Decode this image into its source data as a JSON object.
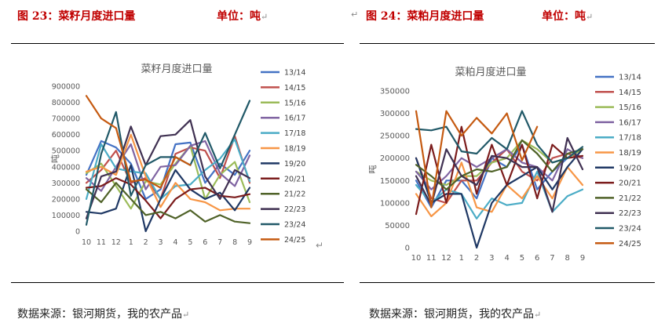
{
  "left": {
    "figure_title": "图 23：菜籽月度进口量",
    "unit": "单位：吨",
    "source": "数据来源：银河期货，我的农产品"
  },
  "right": {
    "figure_title": "图 24：菜粕月度进口量",
    "unit": "单位：吨",
    "source": "数据来源：银河期货，我的农产品"
  },
  "return_mark": "↵",
  "chart_data": [
    {
      "type": "line",
      "title": "菜籽月度进口量",
      "ylabel": "吨",
      "xlabel": "",
      "ylim": [
        0,
        900000
      ],
      "yticks": [
        0,
        100000,
        200000,
        300000,
        400000,
        500000,
        600000,
        700000,
        800000,
        900000
      ],
      "categories": [
        "10",
        "11",
        "12",
        "1",
        "2",
        "3",
        "4",
        "5",
        "6",
        "7",
        "8",
        "9"
      ],
      "legend_position": "right",
      "series": [
        {
          "name": "13/14",
          "color": "#4472c4",
          "values": [
            350000,
            560000,
            520000,
            420000,
            200000,
            260000,
            540000,
            550000,
            300000,
            420000,
            350000,
            500000
          ]
        },
        {
          "name": "14/15",
          "color": "#c0504d",
          "values": [
            300000,
            380000,
            500000,
            300000,
            330000,
            200000,
            480000,
            520000,
            500000,
            330000,
            590000,
            300000
          ]
        },
        {
          "name": "15/16",
          "color": "#9bbb59",
          "values": [
            360000,
            420000,
            280000,
            140000,
            310000,
            290000,
            420000,
            530000,
            200000,
            350000,
            430000,
            180000
          ]
        },
        {
          "name": "16/17",
          "color": "#8064a2",
          "values": [
            330000,
            250000,
            400000,
            540000,
            260000,
            400000,
            410000,
            530000,
            560000,
            360000,
            280000,
            470000
          ]
        },
        {
          "name": "17/18",
          "color": "#4bacc6",
          "values": [
            200000,
            540000,
            390000,
            370000,
            360000,
            200000,
            280000,
            290000,
            380000,
            450000,
            570000,
            310000
          ]
        },
        {
          "name": "18/19",
          "color": "#f79646",
          "values": [
            370000,
            400000,
            350000,
            600000,
            340000,
            150000,
            300000,
            200000,
            180000,
            130000,
            140000,
            140000
          ]
        },
        {
          "name": "19/20",
          "color": "#1f3864",
          "values": [
            120000,
            110000,
            140000,
            410000,
            0,
            200000,
            380000,
            260000,
            200000,
            240000,
            130000,
            270000
          ]
        },
        {
          "name": "20/21",
          "color": "#7b1c1c",
          "values": [
            270000,
            280000,
            330000,
            290000,
            190000,
            80000,
            200000,
            260000,
            270000,
            220000,
            210000,
            230000
          ]
        },
        {
          "name": "21/22",
          "color": "#4f6228",
          "values": [
            260000,
            180000,
            300000,
            200000,
            100000,
            120000,
            80000,
            130000,
            60000,
            100000,
            60000,
            50000
          ]
        },
        {
          "name": "22/23",
          "color": "#403152",
          "values": [
            80000,
            340000,
            370000,
            650000,
            410000,
            590000,
            600000,
            690000,
            340000,
            200000,
            380000,
            330000
          ]
        },
        {
          "name": "23/24",
          "color": "#215968",
          "values": [
            40000,
            480000,
            740000,
            220000,
            410000,
            460000,
            460000,
            410000,
            610000,
            390000,
            600000,
            810000
          ]
        },
        {
          "name": "24/25",
          "color": "#c55a11",
          "values": [
            840000,
            700000,
            640000,
            310000,
            320000,
            270000,
            460000,
            410000,
            null,
            null,
            null,
            null
          ]
        }
      ]
    },
    {
      "type": "line",
      "title": "菜粕月度进口量",
      "ylabel": "吨",
      "xlabel": "",
      "ylim": [
        0,
        350000
      ],
      "yticks": [
        0,
        50000,
        100000,
        150000,
        200000,
        250000,
        300000,
        350000
      ],
      "categories": [
        "10",
        "11",
        "12",
        "1",
        "2",
        "3",
        "4",
        "5",
        "6",
        "7",
        "8",
        "9"
      ],
      "legend_position": "right",
      "series": [
        {
          "name": "13/14",
          "color": "#4472c4",
          "values": [
            150000,
            90000,
            150000,
            150000,
            110000,
            200000,
            180000,
            230000,
            130000,
            170000,
            200000,
            220000
          ]
        },
        {
          "name": "14/15",
          "color": "#c0504d",
          "values": [
            200000,
            110000,
            100000,
            150000,
            150000,
            190000,
            220000,
            170000,
            150000,
            200000,
            210000,
            200000
          ]
        },
        {
          "name": "15/16",
          "color": "#9bbb59",
          "values": [
            170000,
            150000,
            140000,
            160000,
            160000,
            190000,
            200000,
            240000,
            220000,
            190000,
            200000,
            220000
          ]
        },
        {
          "name": "16/17",
          "color": "#8064a2",
          "values": [
            170000,
            130000,
            160000,
            200000,
            180000,
            200000,
            220000,
            190000,
            180000,
            150000,
            220000,
            200000
          ]
        },
        {
          "name": "17/18",
          "color": "#4bacc6",
          "values": [
            140000,
            100000,
            130000,
            120000,
            65000,
            110000,
            95000,
            100000,
            170000,
            80000,
            115000,
            130000
          ]
        },
        {
          "name": "18/19",
          "color": "#f79646",
          "values": [
            120000,
            70000,
            100000,
            190000,
            90000,
            80000,
            140000,
            110000,
            160000,
            110000,
            180000,
            140000
          ]
        },
        {
          "name": "19/20",
          "color": "#1f3864",
          "values": [
            200000,
            100000,
            120000,
            120000,
            0,
            100000,
            140000,
            160000,
            180000,
            130000,
            180000,
            220000
          ]
        },
        {
          "name": "20/21",
          "color": "#7b1c1c",
          "values": [
            75000,
            230000,
            100000,
            270000,
            120000,
            230000,
            140000,
            230000,
            110000,
            230000,
            200000,
            205000
          ]
        },
        {
          "name": "21/22",
          "color": "#4f6228",
          "values": [
            185000,
            160000,
            130000,
            160000,
            175000,
            170000,
            180000,
            240000,
            210000,
            170000,
            210000,
            220000
          ]
        },
        {
          "name": "22/23",
          "color": "#403152",
          "values": [
            160000,
            95000,
            220000,
            160000,
            140000,
            205000,
            200000,
            180000,
            180000,
            80000,
            245000,
            175000
          ]
        },
        {
          "name": "23/24",
          "color": "#215968",
          "values": [
            265000,
            262000,
            270000,
            215000,
            210000,
            245000,
            220000,
            305000,
            230000,
            190000,
            200000,
            225000
          ]
        },
        {
          "name": "24/25",
          "color": "#c55a11",
          "values": [
            305000,
            90000,
            305000,
            250000,
            290000,
            255000,
            300000,
            195000,
            270000,
            null,
            null,
            null
          ]
        }
      ]
    }
  ]
}
